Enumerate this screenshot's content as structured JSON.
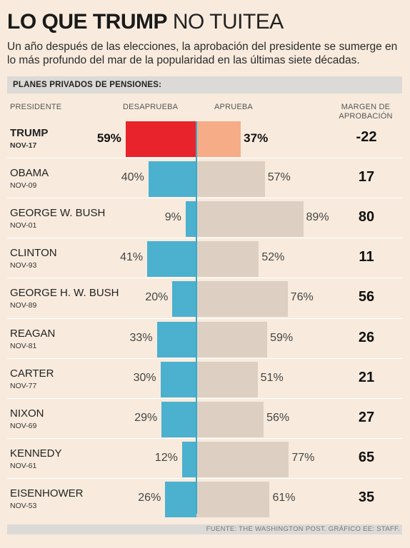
{
  "title_bold": "LO QUE TRUMP",
  "title_light": "NO TUITEA",
  "subtitle": "Un año después de las elecciones, la aprobación del presidente se sumerge en lo más profundo del mar de la popularidad en las últimas siete décadas.",
  "section_title": "PLANES PRIVADOS DE PENSIONES:",
  "columns": {
    "president": "PRESIDENTE",
    "disapprove": "DESAPRUEBA",
    "approve": "APRUEBA",
    "margin_line1": "MARGEN DE",
    "margin_line2": "APROBACIÓN"
  },
  "colors": {
    "highlight_disapprove": "#e8232b",
    "highlight_approve": "#f6ac87",
    "disapprove": "#4bb1cf",
    "approve": "#ddd0c2",
    "background": "#f8ebdd"
  },
  "chart_data": {
    "type": "bar",
    "categories": [
      "TRUMP",
      "OBAMA",
      "GEORGE W. BUSH",
      "CLINTON",
      "GEORGE H. W. BUSH",
      "REAGAN",
      "CARTER",
      "NIXON",
      "KENNEDY",
      "EISENHOWER"
    ],
    "dates": [
      "NOV-17",
      "NOV-09",
      "NOV-01",
      "NOV-93",
      "NOV-89",
      "NOV-81",
      "NOV-77",
      "NOV-69",
      "NOV-61",
      "NOV-53"
    ],
    "series": [
      {
        "name": "DESAPRUEBA",
        "values": [
          59,
          40,
          9,
          41,
          20,
          33,
          30,
          29,
          12,
          26
        ]
      },
      {
        "name": "APRUEBA",
        "values": [
          37,
          57,
          89,
          52,
          76,
          59,
          51,
          56,
          77,
          61
        ]
      }
    ],
    "margins": [
      "-22",
      "17",
      "80",
      "11",
      "56",
      "26",
      "21",
      "27",
      "65",
      "35"
    ],
    "highlight_index": 0,
    "title": "LO QUE TRUMP NO TUITEA"
  },
  "footer": "FUENTE: THE WASHINGTON POST. GRÁFICO EE: STAFF."
}
